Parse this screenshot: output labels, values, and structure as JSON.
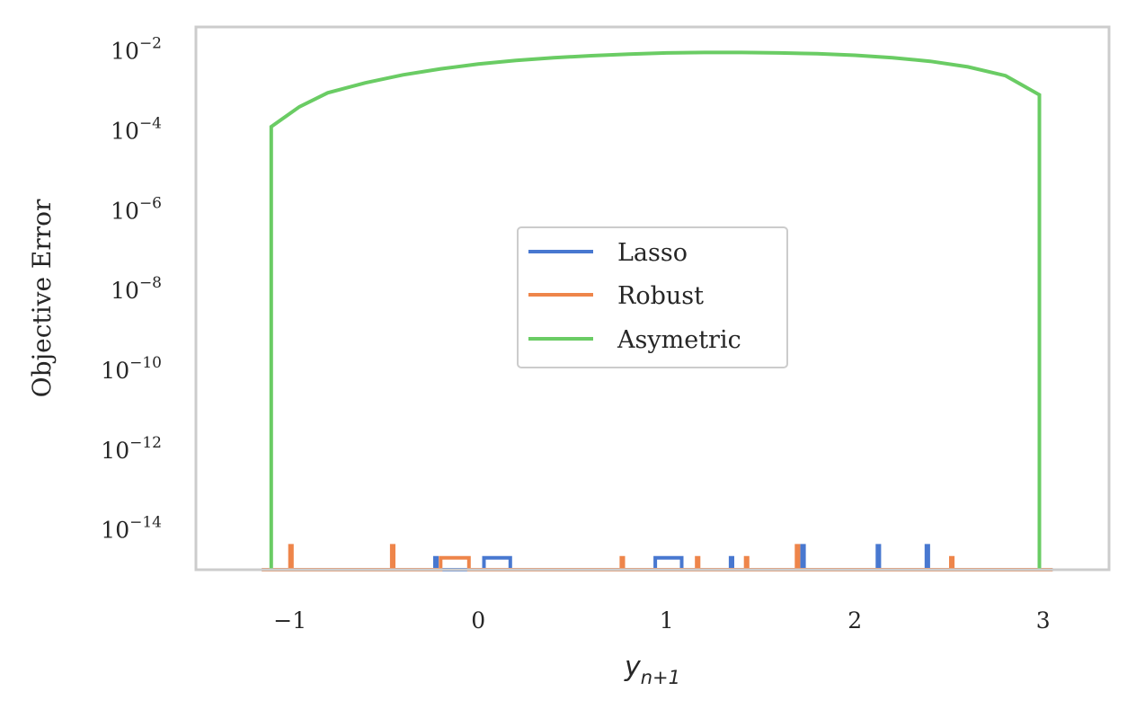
{
  "chart_data": {
    "type": "line",
    "xlabel": "y_{n+1}",
    "xlabel_main": "y",
    "xlabel_sub": "n+1",
    "ylabel": "Objective Error",
    "yscale": "log",
    "xlim": [
      -1.5,
      3.35
    ],
    "ylim_log10": [
      -15.0,
      -1.4
    ],
    "grid": false,
    "legend_position": "center",
    "xticks": [
      {
        "value": -1,
        "label": "−1"
      },
      {
        "value": 0,
        "label": "0"
      },
      {
        "value": 1,
        "label": "1"
      },
      {
        "value": 2,
        "label": "2"
      },
      {
        "value": 3,
        "label": "3"
      }
    ],
    "yticks": [
      {
        "log": -2,
        "base": "10",
        "exp": "−2"
      },
      {
        "log": -4,
        "base": "10",
        "exp": "−4"
      },
      {
        "log": -6,
        "base": "10",
        "exp": "−6"
      },
      {
        "log": -8,
        "base": "10",
        "exp": "−8"
      },
      {
        "log": -10,
        "base": "10",
        "exp": "−10"
      },
      {
        "log": -12,
        "base": "10",
        "exp": "−12"
      },
      {
        "log": -14,
        "base": "10",
        "exp": "−14"
      }
    ],
    "series": [
      {
        "name": "Lasso",
        "color": "#4878d0",
        "x": [
          -1.15,
          -0.23,
          -0.23,
          -0.22,
          -0.22,
          0.03,
          0.03,
          0.17,
          0.17,
          0.94,
          0.94,
          1.08,
          1.08,
          1.34,
          1.34,
          1.35,
          1.35,
          1.72,
          1.72,
          1.73,
          1.73,
          2.12,
          2.12,
          2.13,
          2.13,
          2.38,
          2.38,
          2.39,
          2.39,
          3.05
        ],
        "log10": [
          -15.0,
          -15.0,
          -14.7,
          -14.7,
          -15.0,
          -15.0,
          -14.7,
          -14.7,
          -15.0,
          -15.0,
          -14.7,
          -14.7,
          -15.0,
          -15.0,
          -14.7,
          -14.7,
          -15.0,
          -15.0,
          -14.4,
          -14.4,
          -15.0,
          -15.0,
          -14.4,
          -14.4,
          -15.0,
          -15.0,
          -14.4,
          -14.4,
          -15.0,
          -15.0
        ]
      },
      {
        "name": "Robust",
        "color": "#ee854a",
        "x": [
          -1.15,
          -1.0,
          -1.0,
          -0.99,
          -0.99,
          -0.46,
          -0.46,
          -0.45,
          -0.45,
          -0.2,
          -0.2,
          -0.05,
          -0.05,
          0.76,
          0.76,
          0.77,
          0.77,
          1.16,
          1.16,
          1.17,
          1.17,
          1.42,
          1.42,
          1.43,
          1.43,
          1.69,
          1.69,
          1.7,
          1.7,
          2.51,
          2.51,
          2.52,
          2.52,
          3.05
        ],
        "log10": [
          -15.0,
          -15.0,
          -14.4,
          -14.4,
          -15.0,
          -15.0,
          -14.4,
          -14.4,
          -15.0,
          -15.0,
          -14.7,
          -14.7,
          -15.0,
          -15.0,
          -14.7,
          -14.7,
          -15.0,
          -15.0,
          -14.7,
          -14.7,
          -15.0,
          -15.0,
          -14.7,
          -14.7,
          -15.0,
          -15.0,
          -14.4,
          -14.4,
          -15.0,
          -15.0,
          -14.7,
          -14.7,
          -15.0,
          -15.0
        ]
      },
      {
        "name": "Asymetric",
        "color": "#6acc64",
        "x": [
          -1.1,
          -1.1,
          -0.95,
          -0.8,
          -0.6,
          -0.4,
          -0.2,
          0.0,
          0.2,
          0.4,
          0.6,
          0.8,
          1.0,
          1.2,
          1.4,
          1.6,
          1.8,
          2.0,
          2.2,
          2.4,
          2.6,
          2.8,
          2.98,
          2.98
        ],
        "log10": [
          -15.0,
          -3.9,
          -3.4,
          -3.05,
          -2.8,
          -2.6,
          -2.45,
          -2.33,
          -2.24,
          -2.17,
          -2.12,
          -2.08,
          -2.05,
          -2.04,
          -2.04,
          -2.05,
          -2.07,
          -2.11,
          -2.17,
          -2.26,
          -2.4,
          -2.62,
          -3.1,
          -15.0
        ]
      }
    ]
  }
}
